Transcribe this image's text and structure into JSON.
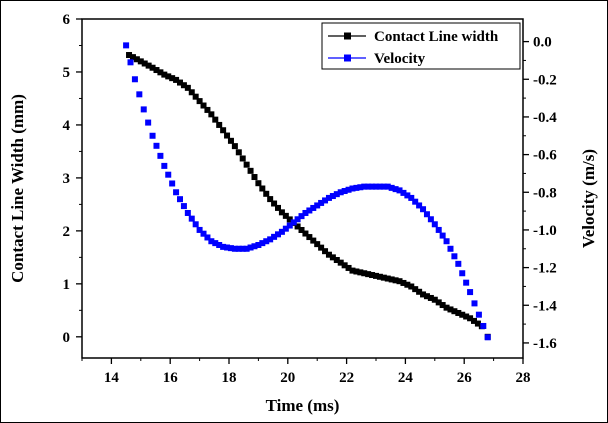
{
  "chart_data": {
    "type": "scatter",
    "xlabel": "Time (ms)",
    "ylabel_left": "Contact Line Width (mm)",
    "ylabel_right": "Velocity (m/s)",
    "xlim": [
      13,
      28
    ],
    "ylim_left": [
      -0.4,
      6
    ],
    "ylim_right": [
      -1.68,
      0.12
    ],
    "x_ticks": [
      "14",
      "16",
      "18",
      "20",
      "22",
      "24",
      "26",
      "28"
    ],
    "y_left_ticks": [
      "0",
      "1",
      "2",
      "3",
      "4",
      "5",
      "6"
    ],
    "y_right_ticks": [
      "0.0",
      "-0.2",
      "-0.4",
      "-0.6",
      "-0.8",
      "-1.0",
      "-1.2",
      "-1.4",
      "-1.6"
    ],
    "legend": {
      "position": "top-right",
      "entries": [
        "Contact Line width",
        "Velocity"
      ]
    },
    "colors": {
      "width": "#000000",
      "velocity": "#0000ff"
    },
    "series": [
      {
        "name": "Contact Line width",
        "axis": "left",
        "marker": "square",
        "x": [
          14.6,
          15.0,
          15.4,
          15.8,
          16.2,
          16.6,
          17.0,
          17.4,
          17.8,
          18.2,
          18.6,
          19.0,
          19.4,
          19.8,
          20.2,
          20.6,
          21.0,
          21.4,
          21.8,
          22.2,
          22.6,
          23.0,
          23.4,
          23.8,
          24.2,
          24.6,
          25.0,
          25.4,
          25.8,
          26.2,
          26.6,
          26.8
        ],
        "y": [
          5.32,
          5.2,
          5.08,
          4.95,
          4.85,
          4.7,
          4.45,
          4.2,
          3.9,
          3.6,
          3.25,
          2.9,
          2.6,
          2.35,
          2.15,
          1.95,
          1.75,
          1.55,
          1.4,
          1.25,
          1.2,
          1.15,
          1.1,
          1.05,
          0.95,
          0.8,
          0.7,
          0.55,
          0.45,
          0.35,
          0.2,
          0.0
        ]
      },
      {
        "name": "Velocity",
        "axis": "right",
        "marker": "square",
        "x": [
          14.5,
          14.8,
          15.1,
          15.4,
          15.8,
          16.2,
          16.6,
          17.0,
          17.4,
          17.8,
          18.2,
          18.6,
          19.0,
          19.4,
          19.8,
          20.2,
          20.6,
          21.0,
          21.4,
          21.8,
          22.2,
          22.6,
          23.0,
          23.4,
          23.8,
          24.2,
          24.6,
          25.0,
          25.4,
          25.8,
          26.2,
          26.5,
          26.8
        ],
        "y": [
          -0.02,
          -0.2,
          -0.36,
          -0.5,
          -0.66,
          -0.8,
          -0.91,
          -1.0,
          -1.06,
          -1.09,
          -1.1,
          -1.1,
          -1.08,
          -1.05,
          -1.01,
          -0.96,
          -0.91,
          -0.87,
          -0.83,
          -0.8,
          -0.78,
          -0.77,
          -0.77,
          -0.77,
          -0.79,
          -0.83,
          -0.89,
          -0.97,
          -1.06,
          -1.18,
          -1.33,
          -1.45,
          -1.57
        ]
      }
    ]
  }
}
